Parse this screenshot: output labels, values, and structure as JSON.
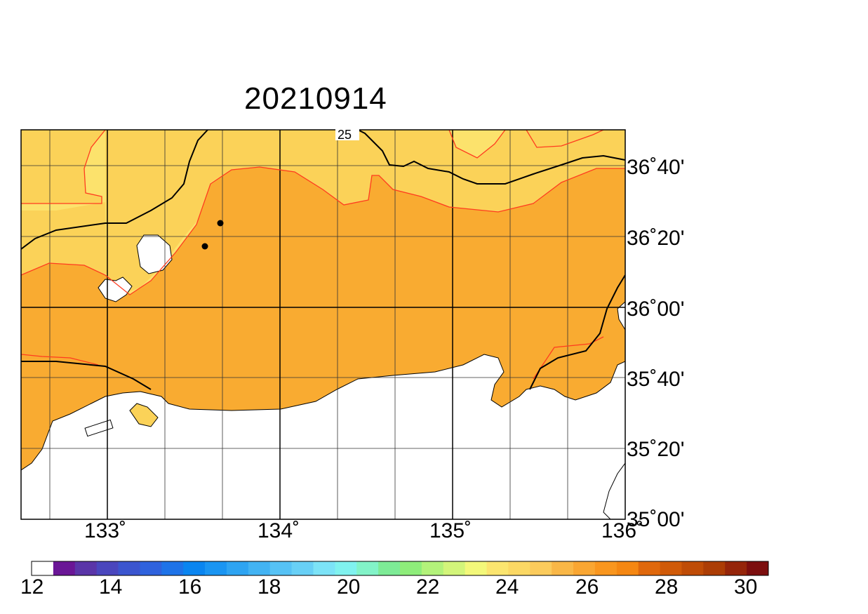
{
  "title": "20210914",
  "contour_label": "25",
  "lon_labels": [
    "133˚",
    "134˚",
    "135˚",
    "136˚"
  ],
  "lat_labels": [
    "36˚40'",
    "36˚20'",
    "36˚00'",
    "35˚40'",
    "35˚20'",
    "35˚00'"
  ],
  "colorbar": {
    "tick_labels": [
      "12",
      "14",
      "16",
      "18",
      "20",
      "22",
      "24",
      "26",
      "28",
      "30"
    ],
    "colors": [
      "#ffffff",
      "#6a1696",
      "#5a35a8",
      "#4a46bd",
      "#3b55cf",
      "#2f62dd",
      "#1e73e8",
      "#0a85f0",
      "#1a95f2",
      "#2ea4f2",
      "#42b3f3",
      "#56c2f5",
      "#68d0f6",
      "#7ce3f7",
      "#80f2ef",
      "#82f3c8",
      "#7deb96",
      "#8eed7a",
      "#b3f27a",
      "#d3f57a",
      "#f3f87a",
      "#fbe56f",
      "#fbd864",
      "#fbcb5c",
      "#f9b747",
      "#f9a632",
      "#f9961e",
      "#f58712",
      "#e0680c",
      "#d05a08",
      "#bf4c06",
      "#ac3d05",
      "#95250a",
      "#7c0e0e"
    ]
  },
  "colors": {
    "zone_24": "#fce26c",
    "zone_25": "#fbd258",
    "zone_26": "#f9ab31",
    "land": "#ffffff",
    "contour_red": "#ff3b1f"
  }
}
